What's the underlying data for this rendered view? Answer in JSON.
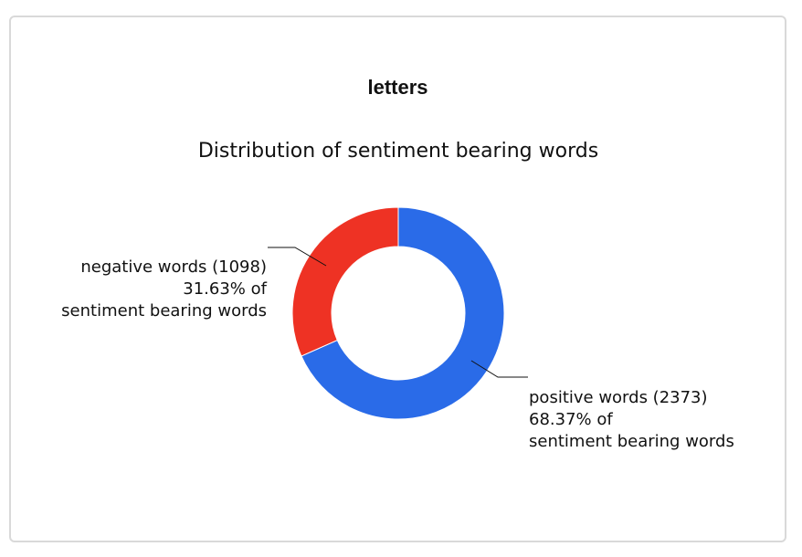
{
  "card": {
    "title": "letters"
  },
  "chart_data": {
    "type": "pie",
    "donut": true,
    "title": "Distribution of sentiment bearing words",
    "slices": [
      {
        "name": "positive words",
        "value": 2373,
        "percent": 68.37,
        "color": "#2a6be8",
        "label_lines": [
          "positive words (2373)",
          "68.37% of",
          "sentiment bearing words"
        ]
      },
      {
        "name": "negative words",
        "value": 1098,
        "percent": 31.63,
        "color": "#ee3224",
        "label_lines": [
          "negative words (1098)",
          "31.63% of",
          "sentiment bearing words"
        ]
      }
    ],
    "legend": "none"
  }
}
